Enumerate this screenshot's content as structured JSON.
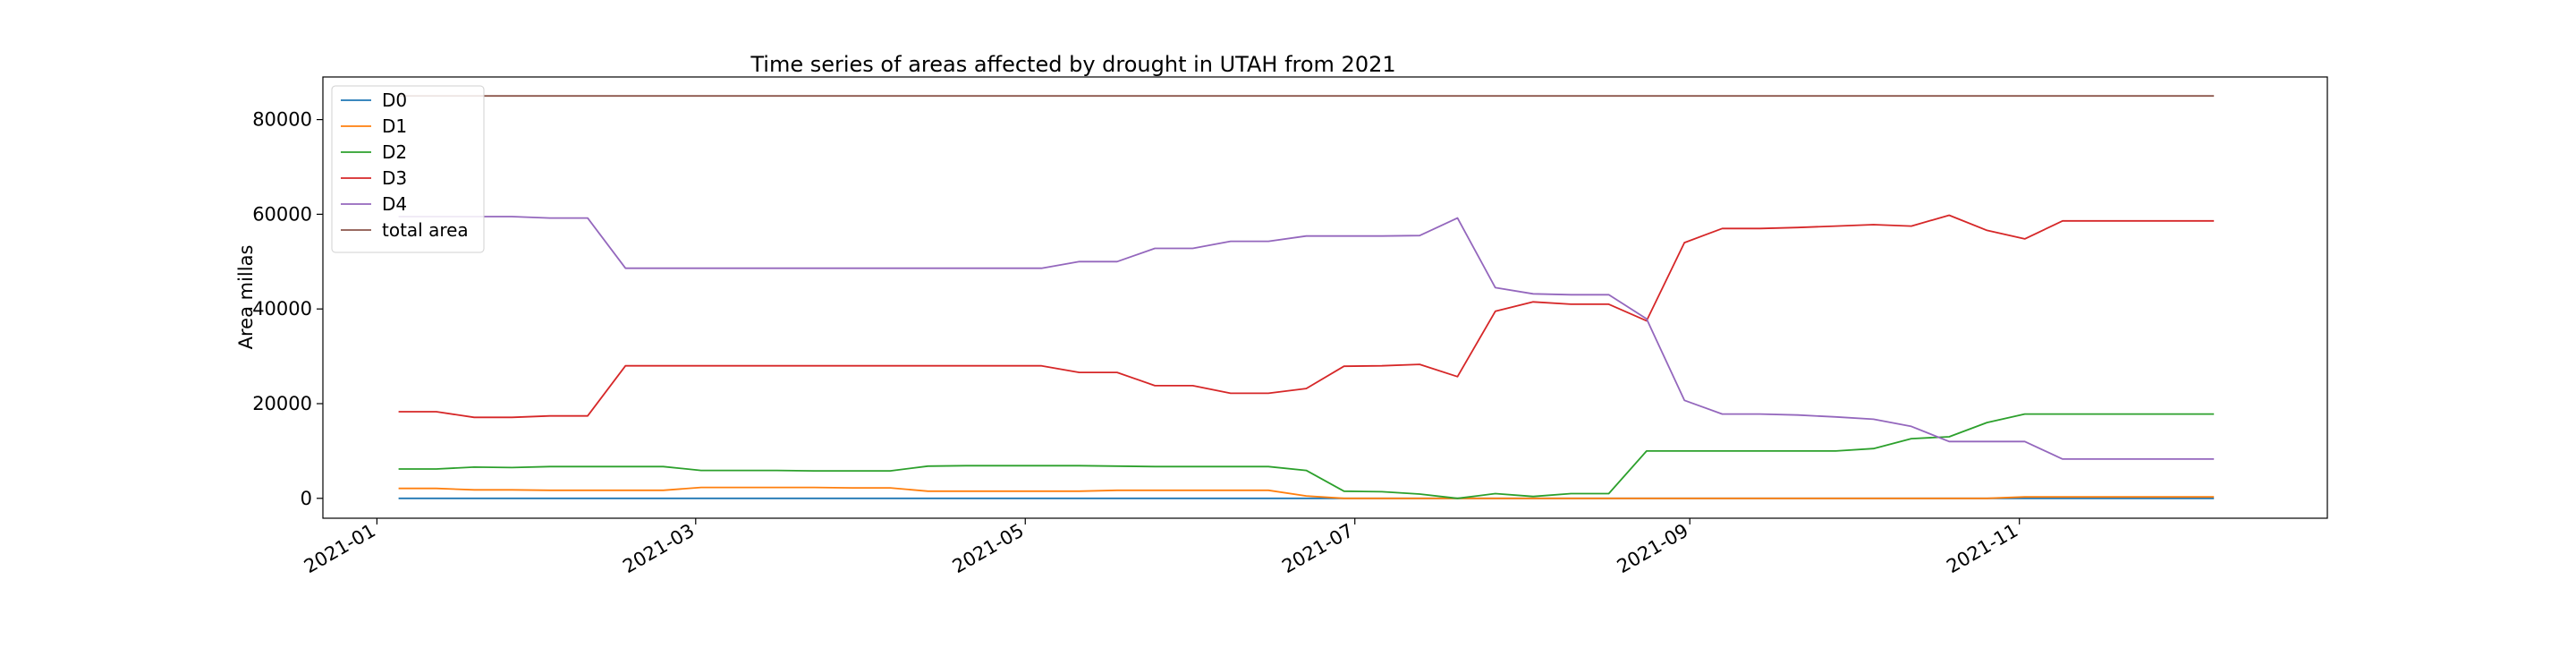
{
  "chart_data": {
    "type": "line",
    "title": "Time series of areas affected by drought in UTAH from 2021",
    "xlabel": "",
    "ylabel": "Area millas",
    "x_ticks": [
      "2021-01",
      "2021-03",
      "2021-05",
      "2021-07",
      "2021-09",
      "2021-11"
    ],
    "y_ticks": [
      "0",
      "20000",
      "40000",
      "60000",
      "80000"
    ],
    "xlim": [
      "2020-12-22",
      "2021-12-28"
    ],
    "ylim": [
      -4200,
      89000
    ],
    "grid": false,
    "legend_position": "top-left",
    "x": [
      "2021-01-05",
      "2021-01-12",
      "2021-01-19",
      "2021-01-26",
      "2021-02-02",
      "2021-02-09",
      "2021-02-16",
      "2021-02-23",
      "2021-03-02",
      "2021-03-09",
      "2021-03-16",
      "2021-03-23",
      "2021-03-30",
      "2021-04-06",
      "2021-04-13",
      "2021-04-20",
      "2021-04-27",
      "2021-05-04",
      "2021-05-11",
      "2021-05-18",
      "2021-05-25",
      "2021-06-01",
      "2021-06-08",
      "2021-06-15",
      "2021-06-22",
      "2021-06-29",
      "2021-07-06",
      "2021-07-13",
      "2021-07-20",
      "2021-07-27",
      "2021-08-03",
      "2021-08-10",
      "2021-08-17",
      "2021-08-24",
      "2021-08-31",
      "2021-09-07",
      "2021-09-14",
      "2021-09-21",
      "2021-09-28",
      "2021-10-05",
      "2021-10-12",
      "2021-10-19",
      "2021-10-26",
      "2021-11-02",
      "2021-11-09",
      "2021-11-16",
      "2021-11-23",
      "2021-11-30",
      "2021-12-07"
    ],
    "series": [
      {
        "name": "D0",
        "color": "#1f77b4",
        "values": [
          0,
          0,
          0,
          0,
          0,
          0,
          0,
          0,
          0,
          0,
          0,
          0,
          0,
          0,
          0,
          0,
          0,
          0,
          0,
          0,
          0,
          0,
          0,
          0,
          0,
          0,
          0,
          0,
          0,
          0,
          0,
          0,
          0,
          0,
          0,
          0,
          0,
          0,
          0,
          0,
          0,
          0,
          0,
          0,
          0,
          0,
          0,
          0,
          0
        ]
      },
      {
        "name": "D1",
        "color": "#ff7f0e",
        "values": [
          2100,
          2100,
          1800,
          1800,
          1700,
          1700,
          1700,
          1700,
          2300,
          2300,
          2300,
          2300,
          2200,
          2200,
          1500,
          1500,
          1500,
          1500,
          1500,
          1700,
          1700,
          1700,
          1700,
          1700,
          500,
          0,
          0,
          0,
          0,
          0,
          0,
          0,
          0,
          0,
          0,
          0,
          0,
          0,
          0,
          0,
          0,
          0,
          0,
          300,
          300,
          300,
          300,
          300,
          300
        ]
      },
      {
        "name": "D2",
        "color": "#2ca02c",
        "values": [
          6200,
          6200,
          6600,
          6500,
          6700,
          6700,
          6700,
          6700,
          5900,
          5900,
          5900,
          5800,
          5800,
          5800,
          6800,
          6900,
          6900,
          6900,
          6900,
          6800,
          6700,
          6700,
          6700,
          6700,
          5900,
          1500,
          1400,
          900,
          0,
          1000,
          400,
          1000,
          1000,
          10000,
          10000,
          10000,
          10000,
          10000,
          10000,
          10500,
          12600,
          13000,
          16000,
          17800,
          17800,
          17800,
          17800,
          17800,
          17800
        ]
      },
      {
        "name": "D3",
        "color": "#d62728",
        "values": [
          18300,
          18300,
          17100,
          17100,
          17400,
          17400,
          28000,
          28000,
          28000,
          28000,
          28000,
          28000,
          28000,
          28000,
          28000,
          28000,
          28000,
          28000,
          26600,
          26600,
          23800,
          23800,
          22200,
          22200,
          23200,
          27900,
          28000,
          28300,
          25700,
          39500,
          41500,
          41000,
          41000,
          37500,
          54000,
          57000,
          57000,
          57200,
          57500,
          57800,
          57500,
          59800,
          56600,
          54800,
          58600,
          58600,
          58600,
          58600,
          58600
        ]
      },
      {
        "name": "D4",
        "color": "#9467bd",
        "values": [
          59500,
          59500,
          59500,
          59500,
          59200,
          59200,
          48600,
          48600,
          48600,
          48600,
          48600,
          48600,
          48600,
          48600,
          48600,
          48600,
          48600,
          48600,
          50000,
          50000,
          52800,
          52800,
          54300,
          54300,
          55400,
          55400,
          55400,
          55500,
          59200,
          44500,
          43200,
          43000,
          43000,
          37900,
          20700,
          17800,
          17800,
          17600,
          17200,
          16700,
          15200,
          12000,
          12000,
          12000,
          8300,
          8300,
          8300,
          8300,
          8300
        ]
      },
      {
        "name": "total area",
        "color": "#8c564b",
        "values": [
          85000,
          85000,
          85000,
          85000,
          85000,
          85000,
          85000,
          85000,
          85000,
          85000,
          85000,
          85000,
          85000,
          85000,
          85000,
          85000,
          85000,
          85000,
          85000,
          85000,
          85000,
          85000,
          85000,
          85000,
          85000,
          85000,
          85000,
          85000,
          85000,
          85000,
          85000,
          85000,
          85000,
          85000,
          85000,
          85000,
          85000,
          85000,
          85000,
          85000,
          85000,
          85000,
          85000,
          85000,
          85000,
          85000,
          85000,
          85000,
          85000
        ]
      }
    ]
  }
}
